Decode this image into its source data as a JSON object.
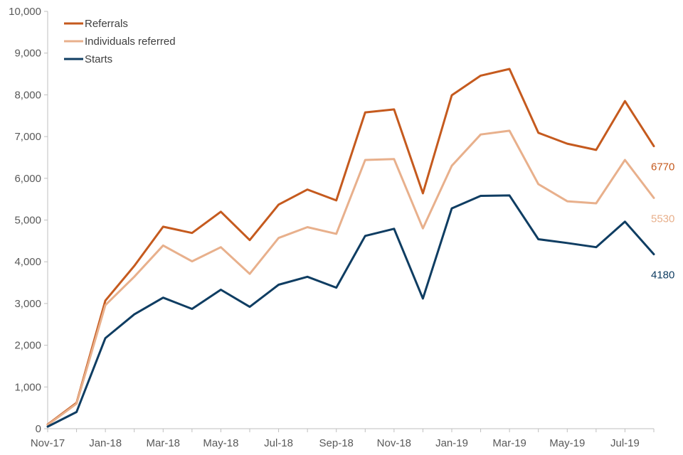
{
  "chart_data": {
    "type": "line",
    "title": "",
    "xlabel": "",
    "ylabel": "",
    "ylim": [
      0,
      10000
    ],
    "yticks": [
      0,
      1000,
      2000,
      3000,
      4000,
      5000,
      6000,
      7000,
      8000,
      9000,
      10000
    ],
    "ytick_labels": [
      "0",
      "1,000",
      "2,000",
      "3,000",
      "4,000",
      "5,000",
      "6,000",
      "7,000",
      "8,000",
      "9,000",
      "10,000"
    ],
    "categories": [
      "Nov-17",
      "Dec-17",
      "Jan-18",
      "Feb-18",
      "Mar-18",
      "Apr-18",
      "May-18",
      "Jun-18",
      "Jul-18",
      "Aug-18",
      "Sep-18",
      "Oct-18",
      "Nov-18",
      "Dec-18",
      "Jan-19",
      "Feb-19",
      "Mar-19",
      "Apr-19",
      "May-19",
      "Jun-19",
      "Jul-19",
      "Aug-19"
    ],
    "xtick_labels": [
      {
        "index": 0,
        "label": "Nov-17"
      },
      {
        "index": 2,
        "label": "Jan-18"
      },
      {
        "index": 4,
        "label": "Mar-18"
      },
      {
        "index": 6,
        "label": "May-18"
      },
      {
        "index": 8,
        "label": "Jul-18"
      },
      {
        "index": 10,
        "label": "Sep-18"
      },
      {
        "index": 12,
        "label": "Nov-18"
      },
      {
        "index": 14,
        "label": "Jan-19"
      },
      {
        "index": 16,
        "label": "Mar-19"
      },
      {
        "index": 18,
        "label": "May-19"
      },
      {
        "index": 20,
        "label": "Jul-19"
      }
    ],
    "legend_position": "top-left",
    "grid": false,
    "series": [
      {
        "name": "Referrals",
        "color": "#C55A1E",
        "values": [
          100,
          620,
          3070,
          3900,
          4840,
          4690,
          5200,
          4520,
          5370,
          5730,
          5470,
          7580,
          7650,
          5640,
          7990,
          8460,
          8620,
          7090,
          6830,
          6680,
          7850,
          6770
        ],
        "end_label": "6770"
      },
      {
        "name": "Individuals referred",
        "color": "#E8B08C",
        "values": [
          90,
          600,
          2960,
          3640,
          4390,
          4010,
          4350,
          3710,
          4570,
          4830,
          4670,
          6440,
          6460,
          4800,
          6300,
          7050,
          7140,
          5860,
          5450,
          5400,
          6440,
          5530
        ],
        "end_label": "5530"
      },
      {
        "name": "Starts",
        "color": "#0F3D62",
        "values": [
          50,
          400,
          2170,
          2740,
          3140,
          2870,
          3330,
          2920,
          3450,
          3640,
          3380,
          4620,
          4790,
          3120,
          5280,
          5580,
          5590,
          4540,
          4450,
          4350,
          4960,
          4180
        ],
        "end_label": "4180"
      }
    ]
  }
}
